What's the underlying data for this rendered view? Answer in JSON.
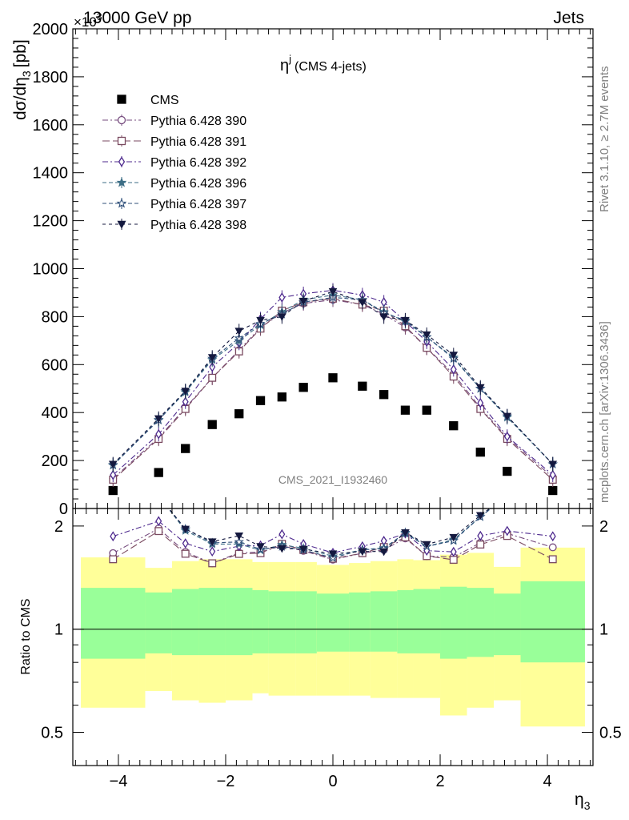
{
  "header": {
    "process": "13000 GeV pp",
    "category": "Jets",
    "y_multiplier": "×10",
    "y_multiplier_exp": "3"
  },
  "side_labels": {
    "rivet": "Rivet 3.1.10, ≥ 2.7M events",
    "mcplots": "mcplots.cern.ch [arXiv:1306.3436]"
  },
  "chart_data": {
    "type": "scatter",
    "title": "η^j (CMS 4-jets)",
    "title_base": "η",
    "title_sup": "j",
    "title_rest": "(CMS 4-jets)",
    "ylabel": "dσ/dη₃ [pb]",
    "ylabel_base": "dσ/dη",
    "ylabel_sub": "3",
    "ylabel_unit": "[pb]",
    "xlabel": "η₃",
    "xlabel_base": "η",
    "xlabel_sub": "3",
    "ratio_ylabel": "Ratio to CMS",
    "watermark": "CMS_2021_I1932460",
    "xlim": [
      -4.85,
      4.85
    ],
    "ylim": [
      0,
      2000
    ],
    "ratio_ylim": [
      0.4,
      2.25
    ],
    "x_ticks": [
      -4,
      -2,
      0,
      2,
      4
    ],
    "x_tick_labels": [
      "−4",
      "−2",
      "0",
      "2",
      "4"
    ],
    "y_ticks": [
      200,
      400,
      600,
      800,
      1000,
      1200,
      1400,
      1600,
      1800,
      2000
    ],
    "y_tick_labels": [
      "200",
      "400",
      "600",
      "800",
      "1000",
      "1200",
      "1400",
      "1600",
      "1800",
      "2000"
    ],
    "y_zero_label": "0",
    "ratio_ticks": [
      0.5,
      1,
      2
    ],
    "ratio_tick_labels": [
      "0.5",
      "1",
      "2"
    ],
    "x": [
      -4.1,
      -3.25,
      -2.75,
      -2.25,
      -1.75,
      -1.35,
      -0.95,
      -0.55,
      0.0,
      0.55,
      0.95,
      1.35,
      1.75,
      2.25,
      2.75,
      3.25,
      4.1
    ],
    "bin_edges": [
      -4.7,
      -3.5,
      -3.0,
      -2.5,
      -2.0,
      -1.5,
      -1.2,
      -0.7,
      -0.3,
      0.3,
      0.7,
      1.2,
      1.5,
      2.0,
      2.5,
      3.0,
      3.5,
      4.7
    ],
    "band_inner": [
      [
        0.82,
        1.32
      ],
      [
        0.85,
        1.28
      ],
      [
        0.84,
        1.31
      ],
      [
        0.84,
        1.32
      ],
      [
        0.84,
        1.32
      ],
      [
        0.85,
        1.3
      ],
      [
        0.85,
        1.29
      ],
      [
        0.85,
        1.29
      ],
      [
        0.86,
        1.27
      ],
      [
        0.86,
        1.28
      ],
      [
        0.86,
        1.29
      ],
      [
        0.85,
        1.3
      ],
      [
        0.85,
        1.31
      ],
      [
        0.82,
        1.33
      ],
      [
        0.83,
        1.32
      ],
      [
        0.84,
        1.27
      ],
      [
        0.8,
        1.38
      ]
    ],
    "band_outer": [
      [
        0.59,
        1.62
      ],
      [
        0.66,
        1.51
      ],
      [
        0.62,
        1.58
      ],
      [
        0.61,
        1.6
      ],
      [
        0.62,
        1.6
      ],
      [
        0.65,
        1.57
      ],
      [
        0.64,
        1.57
      ],
      [
        0.64,
        1.57
      ],
      [
        0.64,
        1.54
      ],
      [
        0.64,
        1.56
      ],
      [
        0.63,
        1.58
      ],
      [
        0.63,
        1.6
      ],
      [
        0.63,
        1.59
      ],
      [
        0.56,
        1.65
      ],
      [
        0.59,
        1.67
      ],
      [
        0.62,
        1.52
      ],
      [
        0.52,
        1.73
      ]
    ],
    "series": [
      {
        "name": "CMS",
        "marker": "square-filled",
        "color": "#000000",
        "dash": "",
        "values": [
          75,
          150,
          250,
          350,
          395,
          450,
          465,
          505,
          545,
          510,
          475,
          410,
          410,
          345,
          235,
          155,
          75
        ]
      },
      {
        "name": "Pythia 6.428 390",
        "marker": "circle-open",
        "color": "#764b7e",
        "dash": "7,3,2,3",
        "values": [
          125,
          295,
          420,
          545,
          660,
          755,
          815,
          855,
          870,
          850,
          810,
          755,
          670,
          560,
          420,
          295,
          130
        ]
      },
      {
        "name": "Pythia 6.428 391",
        "marker": "square-open",
        "color": "#7a4a60",
        "dash": "9,4",
        "values": [
          120,
          290,
          415,
          545,
          655,
          750,
          825,
          860,
          875,
          850,
          825,
          760,
          670,
          550,
          415,
          290,
          120
        ]
      },
      {
        "name": "Pythia 6.428 392",
        "marker": "diamond-open",
        "color": "#4e2a8e",
        "dash": "7,3,2,3",
        "values": [
          140,
          310,
          445,
          590,
          690,
          790,
          880,
          895,
          910,
          890,
          860,
          780,
          695,
          580,
          440,
          300,
          140
        ]
      },
      {
        "name": "Pythia 6.428 396",
        "marker": "star-filled",
        "color": "#3d6e86",
        "dash": "5,3",
        "values": [
          180,
          370,
          485,
          620,
          700,
          765,
          820,
          870,
          890,
          870,
          820,
          780,
          715,
          630,
          500,
          380,
          185
        ]
      },
      {
        "name": "Pythia 6.428 397",
        "marker": "star-open",
        "color": "#2f4f7a",
        "dash": "5,3",
        "values": [
          182,
          368,
          490,
          625,
          710,
          770,
          810,
          860,
          880,
          870,
          815,
          785,
          715,
          625,
          500,
          385,
          185
        ]
      },
      {
        "name": "Pythia 6.428 398",
        "marker": "triangle-down-filled",
        "color": "#14193f",
        "dash": "4,4",
        "values": [
          185,
          375,
          490,
          630,
          740,
          785,
          800,
          865,
          905,
          860,
          800,
          785,
          725,
          640,
          505,
          385,
          185
        ]
      }
    ],
    "legend_position": "top-left",
    "grid": false
  }
}
